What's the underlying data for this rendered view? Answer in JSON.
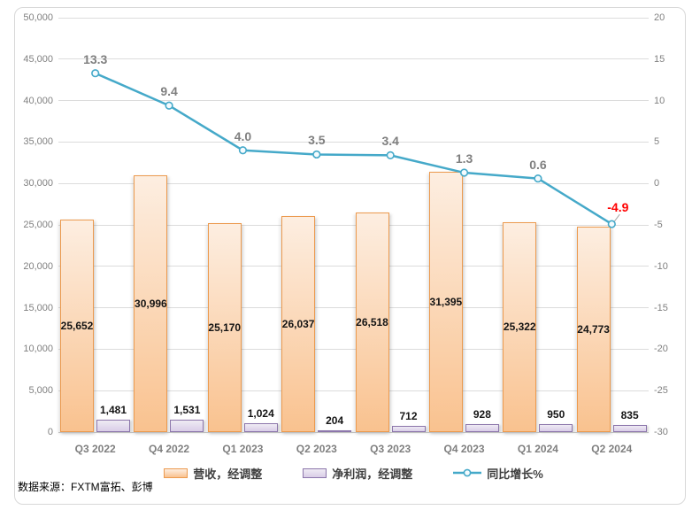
{
  "chart_data": {
    "type": "combo",
    "title": "",
    "categories": [
      "Q3 2022",
      "Q4 2022",
      "Q1 2023",
      "Q2 2023",
      "Q3 2023",
      "Q4 2023",
      "Q1 2024",
      "Q2 2024"
    ],
    "series": [
      {
        "name": "营收，经调整",
        "type": "bar",
        "axis": "left",
        "values": [
          25652,
          30996,
          25170,
          26037,
          26518,
          31395,
          25322,
          24773
        ],
        "labels": [
          "25,652",
          "30,996",
          "25,170",
          "26,037",
          "26,518",
          "31,395",
          "25,322",
          "24,773"
        ]
      },
      {
        "name": "净利润，经调整",
        "type": "bar",
        "axis": "left",
        "values": [
          1481,
          1531,
          1024,
          204,
          712,
          928,
          950,
          835
        ],
        "labels": [
          "1,481",
          "1,531",
          "1,024",
          "204",
          "712",
          "928",
          "950",
          "835"
        ]
      },
      {
        "name": "同比增长%",
        "type": "line",
        "axis": "right",
        "values": [
          13.3,
          9.4,
          4.0,
          3.5,
          3.4,
          1.3,
          0.6,
          -4.9
        ],
        "labels": [
          "13.3",
          "9.4",
          "4.0",
          "3.5",
          "3.4",
          "1.3",
          "0.6",
          "-4.9"
        ]
      }
    ],
    "left_axis": {
      "min": 0,
      "max": 50000,
      "tick_values": [
        50000,
        45000,
        40000,
        35000,
        30000,
        25000,
        20000,
        15000,
        10000,
        5000,
        0
      ],
      "tick_labels": [
        "50,000",
        "45,000",
        "40,000",
        "35,000",
        "30,000",
        "25,000",
        "20,000",
        "15,000",
        "10,000",
        "5,000",
        "0"
      ]
    },
    "right_axis": {
      "min": -30,
      "max": 20,
      "tick_values": [
        20,
        15,
        10,
        5,
        0,
        -5,
        -10,
        -15,
        -20,
        -25,
        -30
      ],
      "tick_labels": [
        "20",
        "15",
        "10",
        "5",
        "0",
        "-5",
        "-10",
        "-15",
        "-20",
        "-25",
        "-30"
      ]
    },
    "grid": true,
    "legend_position": "bottom",
    "colors": {
      "revenue_fill_top": "#FDEEE1",
      "revenue_fill_bottom": "#F9C28F",
      "revenue_border": "#EC9A4E",
      "profit_fill_top": "#EFEBF4",
      "profit_fill_bottom": "#D9CDE7",
      "profit_border": "#8C76AB",
      "line": "#45A9C9",
      "marker_fill": "#F4FBFE",
      "line_label": "#7F7F7F",
      "negative_label": "#FF0000",
      "bar_label": "#141414",
      "gridline": "#DCDCDC",
      "axis_line": "#BFBFBF",
      "axis_text": "#808080",
      "leader_line": "#A6A6A6"
    }
  },
  "footer": {
    "source_note": "数据来源：FXTM富拓、彭博"
  }
}
